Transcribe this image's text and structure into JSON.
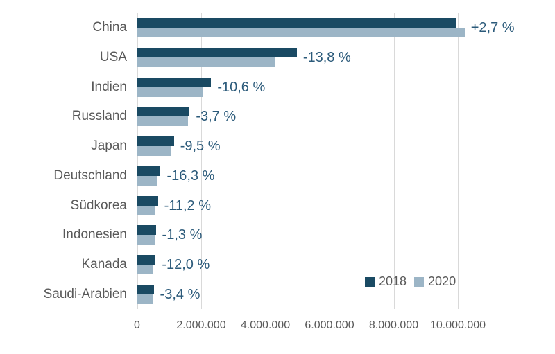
{
  "chart_data": {
    "type": "bar",
    "orientation": "horizontal",
    "title": "",
    "categories": [
      "China",
      "USA",
      "Indien",
      "Russland",
      "Japan",
      "Deutschland",
      "Südkorea",
      "Indonesien",
      "Kanada",
      "Saudi-Arabien"
    ],
    "series": [
      {
        "name": "2018",
        "color": "#1a4a63",
        "values": [
          9940000,
          4980000,
          2310000,
          1640000,
          1150000,
          735000,
          650000,
          585000,
          580000,
          520000
        ]
      },
      {
        "name": "2020",
        "color": "#9cb5c6",
        "values": [
          10210000,
          4290000,
          2065000,
          1580000,
          1040000,
          615000,
          577000,
          577000,
          510000,
          502000
        ]
      }
    ],
    "bar_labels": [
      "+2,7 %",
      "-13,8 %",
      "-10,6 %",
      "-3,7 %",
      "-9,5 %",
      "-16,3 %",
      "-11,2 %",
      "-1,3 %",
      "-12,0 %",
      "-3,4 %"
    ],
    "x_ticks": [
      {
        "value": 0,
        "label": "0"
      },
      {
        "value": 2000000,
        "label": "2.000.000"
      },
      {
        "value": 4000000,
        "label": "4.000.000"
      },
      {
        "value": 6000000,
        "label": "6.000.000"
      },
      {
        "value": 8000000,
        "label": "8.000.000"
      },
      {
        "value": 10000000,
        "label": "10.000.000"
      }
    ],
    "xlim": [
      0,
      10000000
    ],
    "grid": "vertical",
    "legend": {
      "position": "inside-bottom-right",
      "items": [
        "2018",
        "2020"
      ]
    },
    "colors": {
      "series_2018": "#1a4a63",
      "series_2020": "#9cb5c6",
      "gridline": "#d9d9d9",
      "axis_text": "#595959",
      "category_text": "#595959",
      "bar_label_text": "#2b5a7a",
      "background": "#ffffff"
    }
  }
}
